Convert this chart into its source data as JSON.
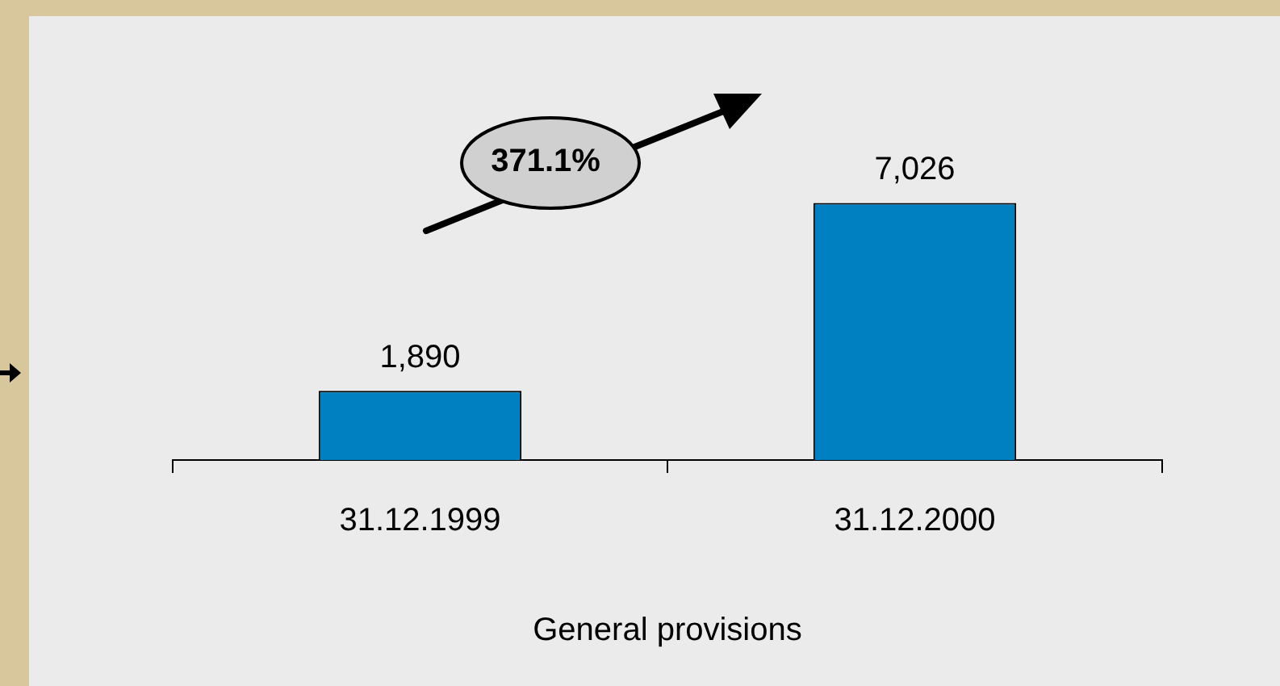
{
  "chart_data": {
    "type": "bar",
    "xlabel": "General provisions",
    "categories": [
      "31.12.1999",
      "31.12.2000"
    ],
    "values": [
      1890,
      7026
    ],
    "color": "#0080c0",
    "data_labels": true,
    "value_labels": [
      "1,890",
      "7,026"
    ],
    "annotations": [
      "371.1%"
    ],
    "grid": false,
    "legend": false
  }
}
